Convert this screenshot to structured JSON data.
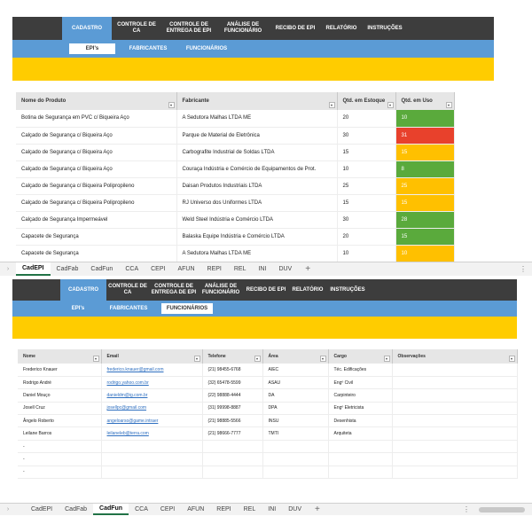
{
  "colors": {
    "menu_bg": "#3d3d3d",
    "accent_blue": "#5b9bd5",
    "banner_yellow": "#ffcc00",
    "status_green": "#5aaa3c",
    "status_red": "#e8412c",
    "status_orange": "#ffc000"
  },
  "panel1": {
    "menu": [
      {
        "label": "CADASTRO",
        "active": true
      },
      {
        "label": "CONTROLE DE\nCA",
        "active": false
      },
      {
        "label": "CONTROLE DE\nENTREGA DE EPI",
        "active": false
      },
      {
        "label": "ANÁLISE DE\nFUNCIONÁRIO",
        "active": false
      },
      {
        "label": "RECIBO DE EPI",
        "active": false
      },
      {
        "label": "RELATÓRIO",
        "active": false
      },
      {
        "label": "INSTRUÇÕES",
        "active": false
      }
    ],
    "submenu": [
      {
        "label": "EPI's",
        "active": true
      },
      {
        "label": "FABRICANTES",
        "active": false
      },
      {
        "label": "FUNCIONÁRIOS",
        "active": false
      }
    ],
    "columns": [
      "Nome do Produto",
      "Fabricante",
      "Qtd. em Estoque",
      "Qtd. em Uso"
    ],
    "rows": [
      {
        "produto": "Botina de Segurança em PVC c/ Biqueira Aço",
        "fabricante": "A Sedutora Malhas LTDA ME",
        "estoque": "20",
        "uso": "10",
        "status": "green"
      },
      {
        "produto": "Calçado de Segurança c/ Biqueira Aço",
        "fabricante": "Parque de Material de Eletrônica",
        "estoque": "30",
        "uso": "31",
        "status": "red"
      },
      {
        "produto": "Calçado de Segurança c/ Biqueira Aço",
        "fabricante": "Carbografite Industrial de Soldas LTDA",
        "estoque": "15",
        "uso": "15",
        "status": "orange"
      },
      {
        "produto": "Calçado de Segurança c/ Biqueira Aço",
        "fabricante": "Couraça Indústria e Comércio de Equipamentos de Prot.",
        "estoque": "10",
        "uso": "8",
        "status": "green"
      },
      {
        "produto": "Calçado de Segurança c/ Biqueira Polipropileno",
        "fabricante": "Daisan Produtos Industriais LTDA",
        "estoque": "25",
        "uso": "25",
        "status": "orange"
      },
      {
        "produto": "Calçado de Segurança c/ Biqueira Polipropileno",
        "fabricante": "RJ Universo dos Uniformes LTDA",
        "estoque": "15",
        "uso": "15",
        "status": "orange"
      },
      {
        "produto": "Calçado de Segurança Impermeável",
        "fabricante": "Weld Steel Indústria e Comércio LTDA",
        "estoque": "30",
        "uso": "28",
        "status": "green"
      },
      {
        "produto": "Capacete de Segurança",
        "fabricante": "Balaska Equipe Indústria e Comércio LTDA",
        "estoque": "20",
        "uso": "15",
        "status": "green"
      },
      {
        "produto": "Capacete de Segurança",
        "fabricante": "A Sedutora Malhas LTDA ME",
        "estoque": "10",
        "uso": "10",
        "status": "orange"
      }
    ],
    "sheet_tabs": [
      {
        "label": "CadEPI",
        "active": true
      },
      {
        "label": "CadFab",
        "active": false
      },
      {
        "label": "CadFun",
        "active": false
      },
      {
        "label": "CCA",
        "active": false
      },
      {
        "label": "CEPI",
        "active": false
      },
      {
        "label": "AFUN",
        "active": false
      },
      {
        "label": "REPI",
        "active": false
      },
      {
        "label": "REL",
        "active": false
      },
      {
        "label": "INI",
        "active": false
      },
      {
        "label": "DUV",
        "active": false
      }
    ]
  },
  "panel2": {
    "menu": [
      {
        "label": "CADASTRO",
        "active": true
      },
      {
        "label": "CONTROLE DE\nCA",
        "active": false
      },
      {
        "label": "CONTROLE DE\nENTREGA DE EPI",
        "active": false
      },
      {
        "label": "ANÁLISE DE\nFUNCIONÁRIO",
        "active": false
      },
      {
        "label": "RECIBO DE EPI",
        "active": false
      },
      {
        "label": "RELATÓRIO",
        "active": false
      },
      {
        "label": "INSTRUÇÕES",
        "active": false
      }
    ],
    "submenu": [
      {
        "label": "EPI's",
        "active": false
      },
      {
        "label": "FABRICANTES",
        "active": false
      },
      {
        "label": "FUNCIONÁRIOS",
        "active": true
      }
    ],
    "columns": [
      "Nome",
      "Email",
      "Telefone",
      "Área",
      "Cargo",
      "Observações"
    ],
    "rows": [
      {
        "nome": "Frederico Knauer",
        "email": "frederico.knauer@gmail.com",
        "telefone": "(21) 98455-6768",
        "area": "AIEC",
        "cargo": "Téc. Edificações",
        "obs": ""
      },
      {
        "nome": "Rodrigo André",
        "email": "rodrigo.yahoo.com.br",
        "telefone": "(32) 65478-5599",
        "area": "ASAU",
        "cargo": "Engº Civil",
        "obs": ""
      },
      {
        "nome": "Daniel Mouço",
        "email": "danieldm@ig.com.br",
        "telefone": "(22) 98888-4444",
        "area": "DA",
        "cargo": "Carpinteiro",
        "obs": ""
      },
      {
        "nome": "Josell Cruz",
        "email": "josellpc@gmail.com",
        "telefone": "(31) 99998-8887",
        "area": "DPA",
        "cargo": "Engº Eletricista",
        "obs": ""
      },
      {
        "nome": "Ângelo Roberto",
        "email": "angeloarso@game.intraer",
        "telefone": "(21) 98885-5566",
        "area": "INSU",
        "cargo": "Desenhista",
        "obs": ""
      },
      {
        "nome": "Leilane Barros",
        "email": "leilaneleb@terra.com",
        "telefone": "(21) 98666-7777",
        "area": "TMTI",
        "cargo": "Arquiteta",
        "obs": ""
      },
      {
        "nome": "-",
        "email": "",
        "telefone": "",
        "area": "",
        "cargo": "",
        "obs": ""
      },
      {
        "nome": "-",
        "email": "",
        "telefone": "",
        "area": "",
        "cargo": "",
        "obs": ""
      },
      {
        "nome": "-",
        "email": "",
        "telefone": "",
        "area": "",
        "cargo": "",
        "obs": ""
      }
    ],
    "sheet_tabs": [
      {
        "label": "CadEPI",
        "active": false
      },
      {
        "label": "CadFab",
        "active": false
      },
      {
        "label": "CadFun",
        "active": true
      },
      {
        "label": "CCA",
        "active": false
      },
      {
        "label": "CEPI",
        "active": false
      },
      {
        "label": "AFUN",
        "active": false
      },
      {
        "label": "REPI",
        "active": false
      },
      {
        "label": "REL",
        "active": false
      },
      {
        "label": "INI",
        "active": false
      },
      {
        "label": "DUV",
        "active": false
      }
    ]
  }
}
